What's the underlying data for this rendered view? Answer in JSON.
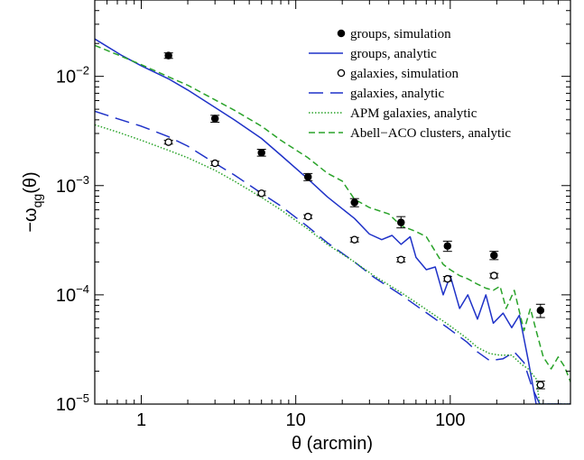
{
  "chart_data": {
    "type": "scatter",
    "xlabel": "θ (arcmin)",
    "ylabel": "−ω",
    "ylabel_sub": "qg",
    "ylabel_suffix": "(θ)",
    "xscale": "log",
    "yscale": "log",
    "xlim": [
      0.5,
      600
    ],
    "ylim": [
      1e-05,
      0.05
    ],
    "x_ticks": [
      {
        "value": 1,
        "label": "1"
      },
      {
        "value": 10,
        "label": "10"
      },
      {
        "value": 100,
        "label": "100"
      }
    ],
    "y_ticks": [
      {
        "value": 1e-05,
        "base": "10",
        "exp": "−5"
      },
      {
        "value": 0.0001,
        "base": "10",
        "exp": "−4"
      },
      {
        "value": 0.001,
        "base": "10",
        "exp": "−3"
      },
      {
        "value": 0.01,
        "base": "10",
        "exp": "−2"
      }
    ],
    "grid": false,
    "legend_position": "top-right",
    "series": [
      {
        "name": "groups, simulation",
        "kind": "points",
        "marker": "filled-circle",
        "color": "#000000",
        "x": [
          1.5,
          3,
          6,
          12,
          24,
          48,
          96,
          192,
          384
        ],
        "y": [
          0.0155,
          0.0041,
          0.002,
          0.0012,
          0.0007,
          0.00046,
          0.00028,
          0.00023,
          7.2e-05
        ],
        "err_low": [
          0.0146,
          0.0038,
          0.00186,
          0.00111,
          0.00064,
          0.00041,
          0.00025,
          0.00021,
          6.2e-05
        ],
        "err_high": [
          0.0164,
          0.0044,
          0.00215,
          0.00129,
          0.00076,
          0.00052,
          0.00031,
          0.00025,
          8.2e-05
        ]
      },
      {
        "name": "groups, analytic",
        "kind": "line",
        "dash": "solid",
        "color": "#1f32c8",
        "x": [
          0.5,
          0.75,
          1,
          1.5,
          2,
          3,
          4,
          6,
          8,
          12,
          16,
          24,
          30,
          36,
          42,
          48,
          55,
          60,
          70,
          80,
          90,
          100,
          115,
          130,
          150,
          170,
          190,
          220,
          250,
          280,
          320,
          360,
          600
        ],
        "y": [
          0.022,
          0.0155,
          0.0125,
          0.0095,
          0.0075,
          0.0052,
          0.004,
          0.0027,
          0.0019,
          0.00115,
          0.00079,
          0.0005,
          0.00036,
          0.00032,
          0.00035,
          0.00029,
          0.00034,
          0.00022,
          0.00017,
          0.00018,
          0.0001,
          0.00015,
          7.5e-05,
          0.0001,
          6e-05,
          0.0001,
          5.5e-05,
          6.8e-05,
          5e-05,
          6.5e-05,
          2.5e-05,
          1e-05,
          1e-05
        ]
      },
      {
        "name": "galaxies, simulation",
        "kind": "points",
        "marker": "open-circle",
        "color": "#000000",
        "x": [
          1.5,
          3,
          6,
          12,
          24,
          48,
          96,
          192,
          384
        ],
        "y": [
          0.0025,
          0.0016,
          0.00085,
          0.00052,
          0.00032,
          0.00021,
          0.00014,
          0.00015,
          1.5e-05
        ],
        "err_low": [
          0.0024,
          0.00153,
          0.00081,
          0.0005,
          0.000305,
          0.0002,
          0.000133,
          0.000143,
          1.38e-05
        ],
        "err_high": [
          0.0026,
          0.00167,
          0.00089,
          0.00054,
          0.000335,
          0.00022,
          0.000147,
          0.000157,
          1.62e-05
        ]
      },
      {
        "name": "galaxies, analytic",
        "kind": "line",
        "dash": "long-dash",
        "color": "#1f32c8",
        "x": [
          0.5,
          0.7,
          1,
          1.5,
          2,
          3,
          4,
          6,
          8,
          12,
          16,
          24,
          32,
          48,
          64,
          96,
          128,
          150,
          180,
          220,
          260,
          300,
          340,
          380,
          420,
          600
        ],
        "y": [
          0.0048,
          0.0041,
          0.0035,
          0.0028,
          0.0023,
          0.0016,
          0.00125,
          0.00085,
          0.00065,
          0.00042,
          0.0003,
          0.0002,
          0.000145,
          0.0001,
          7.5e-05,
          5e-05,
          3.7e-05,
          3e-05,
          2.5e-05,
          2.6e-05,
          3e-05,
          2.4e-05,
          1.4e-05,
          1e-05,
          1e-05,
          1e-05
        ]
      },
      {
        "name": "APM galaxies, analytic",
        "kind": "line",
        "dash": "dotted",
        "color": "#2aa32a",
        "x": [
          0.5,
          0.7,
          1,
          1.5,
          2,
          3,
          4,
          6,
          8,
          12,
          16,
          24,
          32,
          48,
          64,
          96,
          128,
          150,
          180,
          210,
          250,
          290,
          320,
          360,
          380,
          600
        ],
        "y": [
          0.0036,
          0.0031,
          0.0026,
          0.0021,
          0.0018,
          0.00138,
          0.0011,
          0.00078,
          0.0006,
          0.0004,
          0.00029,
          0.0002,
          0.00015,
          0.000105,
          8e-05,
          5.4e-05,
          4e-05,
          3.3e-05,
          2.9e-05,
          2.8e-05,
          2.8e-05,
          2.3e-05,
          2.1e-05,
          1.7e-05,
          1e-05,
          1e-05
        ]
      },
      {
        "name": "Abell−ACO clusters, analytic",
        "kind": "line",
        "dash": "short-dash",
        "color": "#2aa32a",
        "x": [
          0.5,
          0.7,
          1,
          1.5,
          2,
          3,
          4,
          6,
          8,
          12,
          16,
          20,
          24,
          30,
          40,
          48,
          60,
          70,
          80,
          90,
          100,
          115,
          130,
          150,
          170,
          190,
          210,
          230,
          260,
          300,
          330,
          360,
          400,
          450,
          500,
          550,
          600
        ],
        "y": [
          0.0192,
          0.0158,
          0.0128,
          0.0099,
          0.0083,
          0.0061,
          0.0049,
          0.0035,
          0.0026,
          0.0018,
          0.0013,
          0.0011,
          0.00075,
          0.00063,
          0.00055,
          0.00043,
          0.00038,
          0.00034,
          0.00025,
          0.00019,
          0.00017,
          0.00015,
          0.00014,
          0.000125,
          0.000115,
          0.00011,
          0.00012,
          7.5e-05,
          0.00011,
          4.7e-05,
          7.5e-05,
          4.7e-05,
          2.7e-05,
          2.1e-05,
          2.7e-05,
          2.2e-05,
          1.6e-05
        ]
      }
    ]
  }
}
